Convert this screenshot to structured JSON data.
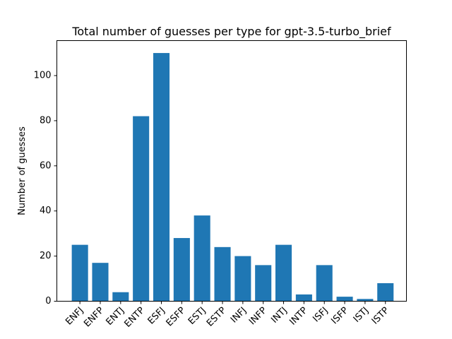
{
  "chart_data": {
    "type": "bar",
    "title": "Total number of guesses per type for gpt-3.5-turbo_brief",
    "xlabel": "",
    "ylabel": "Number of guesses",
    "categories": [
      "ENFJ",
      "ENFP",
      "ENTJ",
      "ENTP",
      "ESFJ",
      "ESFP",
      "ESTJ",
      "ESTP",
      "INFJ",
      "INFP",
      "INTJ",
      "INTP",
      "ISFJ",
      "ISFP",
      "ISTJ",
      "ISTP"
    ],
    "values": [
      25,
      17,
      4,
      82,
      110,
      28,
      38,
      24,
      20,
      16,
      25,
      3,
      16,
      2,
      1,
      8
    ],
    "ylim": [
      0,
      115.5
    ],
    "yticks": [
      0,
      20,
      40,
      60,
      80,
      100
    ],
    "bar_color": "#1f77b4",
    "grid": false,
    "legend": "none",
    "xtick_rotation": 45
  }
}
